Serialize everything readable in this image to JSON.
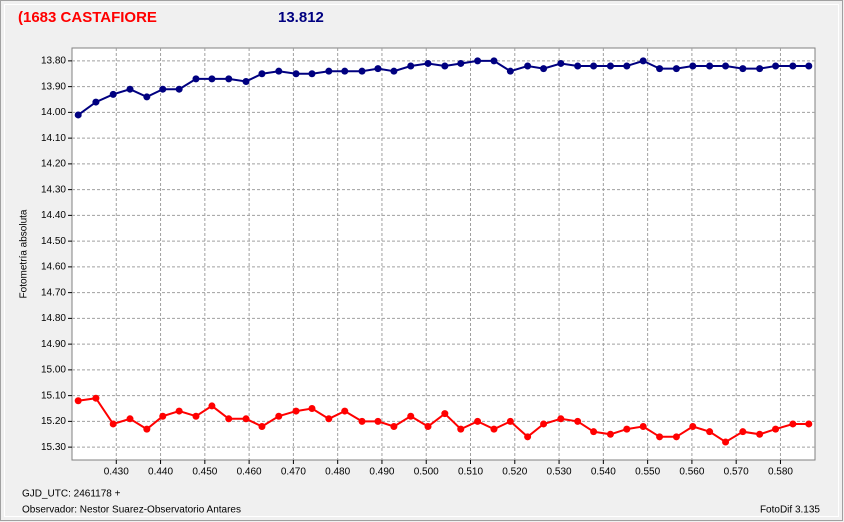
{
  "chart_data": {
    "type": "line",
    "title": "(1683 CASTAFIORE",
    "subtitle": "13.812",
    "y_label": "Fotometría absoluta",
    "x_label": "GJD_UTC: 2461178 +",
    "observer": "Observador: Nestor Suarez-Observatorio Antares",
    "software": "FotoDif 3.135",
    "grid": true,
    "xlim": [
      0.42,
      0.5878
    ],
    "ylim": [
      15.35,
      13.75
    ],
    "xticks": [
      {
        "value": 0.43,
        "label": "0.430"
      },
      {
        "value": 0.44,
        "label": "0.440"
      },
      {
        "value": 0.45,
        "label": "0.450"
      },
      {
        "value": 0.46,
        "label": "0.460"
      },
      {
        "value": 0.47,
        "label": "0.470"
      },
      {
        "value": 0.48,
        "label": "0.480"
      },
      {
        "value": 0.49,
        "label": "0.490"
      },
      {
        "value": 0.5,
        "label": "0.500"
      },
      {
        "value": 0.51,
        "label": "0.510"
      },
      {
        "value": 0.52,
        "label": "0.520"
      },
      {
        "value": 0.53,
        "label": "0.530"
      },
      {
        "value": 0.54,
        "label": "0.540"
      },
      {
        "value": 0.55,
        "label": "0.550"
      },
      {
        "value": 0.56,
        "label": "0.560"
      },
      {
        "value": 0.57,
        "label": "0.570"
      },
      {
        "value": 0.58,
        "label": "0.580"
      }
    ],
    "yticks": [
      {
        "value": 13.8,
        "label": "13.80"
      },
      {
        "value": 13.9,
        "label": "13.90"
      },
      {
        "value": 14.0,
        "label": "14.00"
      },
      {
        "value": 14.1,
        "label": "14.10"
      },
      {
        "value": 14.2,
        "label": "14.20"
      },
      {
        "value": 14.3,
        "label": "14.30"
      },
      {
        "value": 14.4,
        "label": "14.40"
      },
      {
        "value": 14.5,
        "label": "14.50"
      },
      {
        "value": 14.6,
        "label": "14.60"
      },
      {
        "value": 14.7,
        "label": "14.70"
      },
      {
        "value": 14.8,
        "label": "14.80"
      },
      {
        "value": 14.9,
        "label": "14.90"
      },
      {
        "value": 15.0,
        "label": "15.00"
      },
      {
        "value": 15.1,
        "label": "15.10"
      },
      {
        "value": 15.2,
        "label": "15.20"
      },
      {
        "value": 15.3,
        "label": "15.30"
      }
    ],
    "x": [
      0.4214,
      0.4254,
      0.4293,
      0.4331,
      0.4369,
      0.4405,
      0.4442,
      0.448,
      0.4516,
      0.4554,
      0.4593,
      0.4629,
      0.4667,
      0.4706,
      0.4742,
      0.478,
      0.4816,
      0.4855,
      0.4891,
      0.4927,
      0.4965,
      0.5004,
      0.5042,
      0.5078,
      0.5116,
      0.5153,
      0.519,
      0.5229,
      0.5265,
      0.5304,
      0.5342,
      0.5378,
      0.5416,
      0.5453,
      0.549,
      0.5527,
      0.5565,
      0.5602,
      0.564,
      0.5676,
      0.5715,
      0.5753,
      0.5789,
      0.5828,
      0.5864
    ],
    "series": [
      {
        "color": "#000080",
        "values": [
          14.01,
          13.96,
          13.93,
          13.91,
          13.94,
          13.91,
          13.91,
          13.87,
          13.87,
          13.87,
          13.88,
          13.85,
          13.84,
          13.85,
          13.85,
          13.84,
          13.84,
          13.84,
          13.83,
          13.84,
          13.82,
          13.81,
          13.82,
          13.81,
          13.8,
          13.8,
          13.84,
          13.82,
          13.83,
          13.81,
          13.82,
          13.82,
          13.82,
          13.82,
          13.8,
          13.83,
          13.83,
          13.82,
          13.82,
          13.82,
          13.83,
          13.83,
          13.82,
          13.82,
          13.82
        ]
      },
      {
        "color": "#ff0000",
        "values": [
          15.12,
          15.11,
          15.21,
          15.19,
          15.23,
          15.18,
          15.16,
          15.18,
          15.14,
          15.19,
          15.19,
          15.22,
          15.18,
          15.16,
          15.15,
          15.19,
          15.16,
          15.2,
          15.2,
          15.22,
          15.18,
          15.22,
          15.17,
          15.23,
          15.2,
          15.23,
          15.2,
          15.26,
          15.21,
          15.19,
          15.2,
          15.24,
          15.25,
          15.23,
          15.22,
          15.26,
          15.26,
          15.22,
          15.24,
          15.28,
          15.24,
          15.25,
          15.23,
          15.21,
          15.21
        ]
      }
    ]
  }
}
